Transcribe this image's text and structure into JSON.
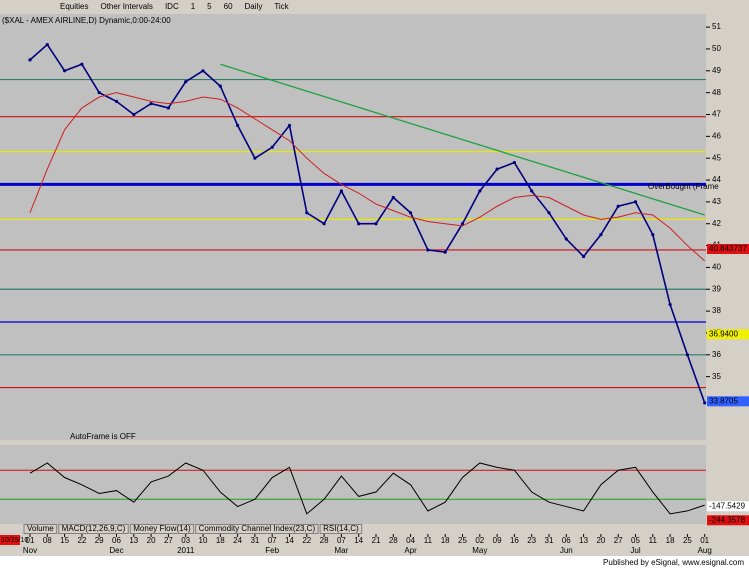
{
  "chart_data": {
    "type": "line",
    "title": "($XAL - AMEX AIRLINE,D) Dynamic,0:00-24:00",
    "toolbar": [
      "Equities",
      "Other Intervals",
      "IDC",
      "1",
      "5",
      "60",
      "Daily",
      "Tick"
    ],
    "categories": [
      "01",
      "08",
      "15",
      "22",
      "29",
      "06",
      "13",
      "20",
      "27",
      "03",
      "10",
      "18",
      "24",
      "31",
      "07",
      "14",
      "22",
      "28",
      "07",
      "14",
      "21",
      "28",
      "04",
      "11",
      "18",
      "25",
      "02",
      "09",
      "16",
      "23",
      "31",
      "06",
      "13",
      "20",
      "27",
      "05",
      "11",
      "18",
      "25",
      "01"
    ],
    "months": [
      {
        "label": "Nov",
        "index": 0
      },
      {
        "label": "Dec",
        "index": 5
      },
      {
        "label": "2011",
        "index": 9
      },
      {
        "label": "Feb",
        "index": 14
      },
      {
        "label": "Mar",
        "index": 18
      },
      {
        "label": "Apr",
        "index": 22
      },
      {
        "label": "May",
        "index": 26
      },
      {
        "label": "Jun",
        "index": 31
      },
      {
        "label": "Jul",
        "index": 35
      },
      {
        "label": "Aug",
        "index": 39
      }
    ],
    "cursor_date": "10/25/10",
    "series": [
      {
        "name": "$XAL",
        "color": "#000080",
        "values": [
          49.5,
          50.2,
          49.0,
          49.3,
          48.0,
          47.6,
          47.0,
          47.5,
          47.3,
          48.5,
          49.0,
          48.3,
          46.5,
          45.0,
          45.5,
          46.5,
          42.5,
          42.0,
          43.5,
          42.0,
          42.0,
          43.2,
          42.5,
          40.8,
          40.7,
          42.0,
          43.5,
          44.5,
          44.8,
          43.5,
          42.5,
          41.3,
          40.5,
          41.5,
          42.8,
          43.0,
          41.5,
          38.3,
          36.0,
          33.8
        ]
      },
      {
        "name": "MA",
        "color": "#cc2020",
        "values": [
          42.5,
          44.5,
          46.3,
          47.3,
          47.8,
          48.0,
          47.8,
          47.6,
          47.5,
          47.6,
          47.8,
          47.7,
          47.3,
          46.8,
          46.3,
          45.8,
          45.0,
          44.3,
          43.8,
          43.4,
          42.9,
          42.6,
          42.3,
          42.1,
          42.0,
          41.9,
          42.3,
          42.8,
          43.2,
          43.3,
          43.2,
          42.8,
          42.4,
          42.2,
          42.3,
          42.5,
          42.4,
          41.8,
          41.0,
          40.3
        ]
      }
    ],
    "ylim": [
      32.1,
      51.6
    ],
    "yticks": [
      35,
      36,
      37,
      38,
      39,
      40,
      41,
      42,
      43,
      44,
      45,
      46,
      47,
      48,
      49,
      50,
      51
    ],
    "levels": [
      {
        "value": 48.6,
        "color": "#2e7d6a"
      },
      {
        "value": 46.9,
        "color": "#d01010"
      },
      {
        "value": 45.3,
        "color": "#e8e800"
      },
      {
        "value": 43.8,
        "color": "#0000d0"
      },
      {
        "value": 42.2,
        "color": "#e8e800"
      },
      {
        "value": 40.8,
        "color": "#d01010"
      },
      {
        "value": 39.0,
        "color": "#2e7d6a"
      },
      {
        "value": 37.5,
        "color": "#0000d0"
      },
      {
        "value": 36.0,
        "color": "#2e7d6a"
      },
      {
        "value": 34.5,
        "color": "#d01010"
      }
    ],
    "price_labels": [
      {
        "value": 40.843737,
        "label": "40.843737",
        "color": "#e01010"
      },
      {
        "value": 36.94,
        "label": "36.9400",
        "color": "#f0f000"
      },
      {
        "value": 33.8705,
        "label": "33.8705",
        "color": "#3060ff"
      }
    ],
    "trendline": {
      "color": "#20a040",
      "from": [
        11,
        49.3
      ],
      "to": [
        39,
        42.4
      ]
    },
    "annotations": [
      "OverBought (Frame",
      "AutoFrame is OFF"
    ],
    "oscillator": {
      "color": "#000000",
      "values": [
        80,
        150,
        50,
        0,
        -60,
        -40,
        -120,
        20,
        60,
        150,
        100,
        -50,
        -150,
        -100,
        50,
        120,
        -200,
        -100,
        60,
        -80,
        -50,
        80,
        0,
        -180,
        -120,
        50,
        150,
        120,
        100,
        -50,
        -120,
        -150,
        -180,
        0,
        100,
        120,
        -50,
        -200,
        -180,
        -140
      ],
      "ylim": [
        -270,
        260
      ],
      "levels": [
        {
          "value": 100,
          "color": "#d01010"
        },
        {
          "value": -100,
          "color": "#20a020"
        }
      ],
      "labels": [
        {
          "value": -147.5429,
          "label": "-147.5429",
          "color": "#ffffff"
        },
        {
          "value": -244.3578,
          "label": "-244.3578",
          "color": "#e01010"
        }
      ]
    },
    "tabs": [
      "Volume",
      "MACD(12,26,9,C)",
      "Money Flow(14)",
      "Commodity Channel Index(23,C)",
      "RSI(14,C)"
    ],
    "footer": "Published by eSignal, www.esignal.com"
  }
}
